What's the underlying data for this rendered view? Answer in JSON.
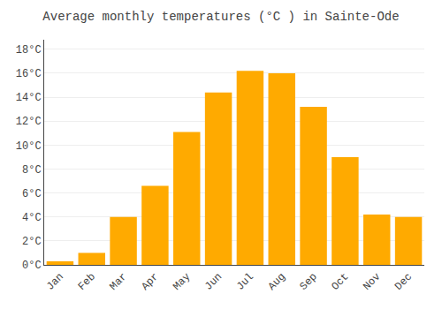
{
  "chart_data": {
    "type": "bar",
    "title": "Average monthly temperatures (°C ) in Sainte-Ode",
    "categories": [
      "Jan",
      "Feb",
      "Mar",
      "Apr",
      "May",
      "Jun",
      "Jul",
      "Aug",
      "Sep",
      "Oct",
      "Nov",
      "Dec"
    ],
    "values": [
      0.3,
      1.0,
      4.0,
      6.6,
      11.1,
      14.4,
      16.2,
      16.0,
      13.2,
      9.0,
      4.2,
      4.0
    ],
    "color": "#FFAA00",
    "ylim": [
      0,
      18.8
    ],
    "yticks": [
      {
        "value": 0,
        "label": "0°C"
      },
      {
        "value": 2,
        "label": "2°C"
      },
      {
        "value": 4,
        "label": "4°C"
      },
      {
        "value": 6,
        "label": "6°C"
      },
      {
        "value": 8,
        "label": "8°C"
      },
      {
        "value": 10,
        "label": "10°C"
      },
      {
        "value": 12,
        "label": "12°C"
      },
      {
        "value": 14,
        "label": "14°C"
      },
      {
        "value": 16,
        "label": "16°C"
      },
      {
        "value": 18,
        "label": "18°C"
      }
    ],
    "grid": true
  }
}
